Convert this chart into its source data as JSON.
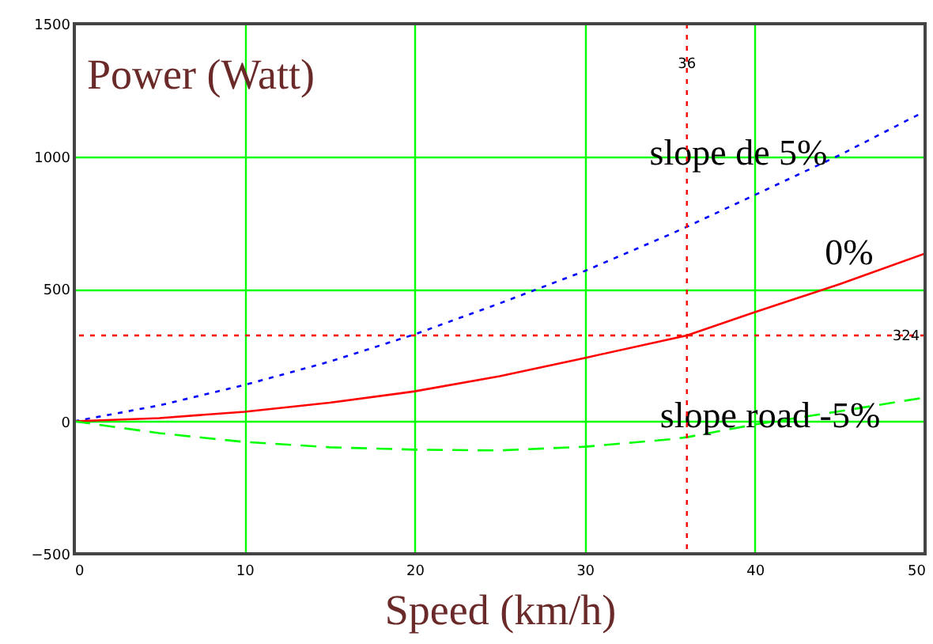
{
  "chart_data": {
    "type": "line",
    "xlabel": "Speed  (km/h)",
    "ylabel": "Power  (Watt)",
    "x": [
      0,
      5,
      10,
      15,
      20,
      25,
      30,
      35,
      36,
      40,
      45,
      50
    ],
    "series": [
      {
        "name": "slope de 5%",
        "color": "#0000ff",
        "line_style": "dotted",
        "values": [
          0,
          60,
          137,
          225,
          328,
          445,
          567,
          705,
          734,
          854,
          1005,
          1170
        ]
      },
      {
        "name": "0%",
        "color": "#ff0000",
        "line_style": "solid",
        "values": [
          0,
          12,
          36,
          70,
          113,
          170,
          239,
          310,
          324,
          412,
          518,
          633
        ]
      },
      {
        "name": "slope road -5%",
        "color": "#00ff00",
        "line_style": "dashed",
        "values": [
          0,
          -45,
          -78,
          -98,
          -107,
          -110,
          -96,
          -68,
          -60,
          -12,
          38,
          90
        ]
      }
    ],
    "xlim": [
      0,
      50
    ],
    "xticks": [
      0,
      10,
      20,
      30,
      40,
      50
    ],
    "ylim": [
      -500,
      1500
    ],
    "yticks": [
      -500,
      0,
      500,
      1000,
      1500
    ],
    "grid": true,
    "ref_lines": [
      {
        "axis": "x",
        "value": 36,
        "label": "36",
        "color": "#ff0000",
        "line_style": "dotted"
      },
      {
        "axis": "y",
        "value": 324,
        "label": "324",
        "color": "#ff0000",
        "line_style": "dotted"
      }
    ]
  }
}
